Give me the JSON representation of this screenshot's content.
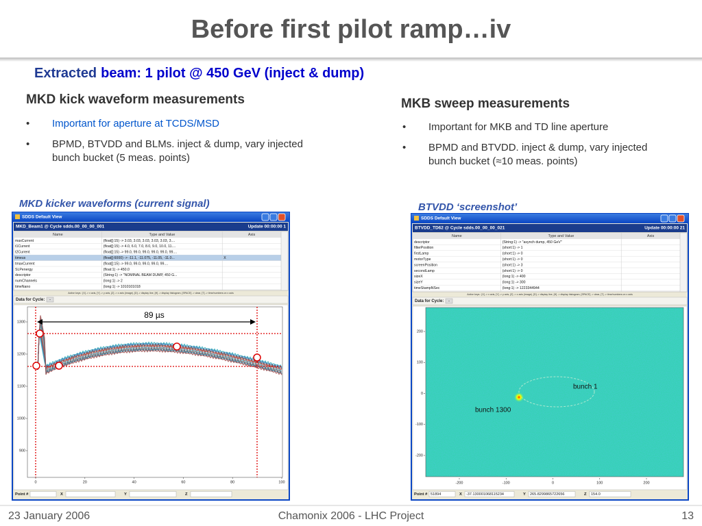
{
  "title": "Before first pilot ramp…iv",
  "subtitle": {
    "highlight": "Extracted",
    "rest": "beam: 1 pilot @ 450 GeV (inject & dump)"
  },
  "left": {
    "heading": "MKD kick waveform measurements",
    "bullets": [
      [
        "Important for aperture at TCDS/MSD"
      ],
      [
        "BPMD, BTVDD and BLMs. inject & dump, vary injected",
        "bunch bucket (5 meas. points)"
      ]
    ],
    "caption": "MKD kicker waveforms (current signal)"
  },
  "right": {
    "heading": "MKB sweep measurements",
    "bullets": [
      [
        "Important for MKB and TD line aperture"
      ],
      [
        "BPMD and BTVDD. inject & dump, vary injected",
        "bunch bucket (≈10 meas. points)"
      ]
    ],
    "caption": "BTVDD ‘screenshot’"
  },
  "windows": [
    {
      "app_title": "SDDS Default View",
      "device": "MKD_Beam1 @ Cycle sdds.00_00_00_001",
      "update": "Update 00:00:00 1",
      "columns": [
        "Name",
        "Type and Value",
        "Axis"
      ],
      "rows": [
        [
          "maxCurrent",
          "(float[]:15) -> 3.03, 3.03, 3.03, 3.03, 3.03, 3...."
        ],
        [
          "t1Current",
          "(float[]:15) -> 4.0, 6.0, 7.0, 8.0, 9.0, 10.0, 11...."
        ],
        [
          "t2Current",
          "(float[]:15) -> 99.0, 99.0, 99.0, 99.0, 99.0, 99...."
        ],
        [
          "timeus",
          "(float[]:6000) -> -11.1, -11.075, -11.05, -11.0...",
          "X"
        ],
        [
          "tmaxCurrent",
          "(float[]:15) -> 99.0, 99.0, 99.0, 99.0, 99...."
        ],
        [
          "SLPenergy",
          "(float:1) -> 450.0"
        ],
        [
          "descriptor",
          "(String:1) -> \"NOMINAL BEAM DUMP, 450 G..."
        ],
        [
          "numChannels",
          "(long:1) -> 2"
        ],
        [
          "timeNano",
          "(long:1) -> 1010101018"
        ]
      ],
      "active_keys": "Active keys : [X] -> x axis, [Y] -> y axis, [Z] -> z axis (image), [D] -> display line, [H] -> display histogram, [SPACE] -> clear, [T] -> time/numbers on x axis",
      "cycle_label": "Data for Cycle:",
      "cycle_value": "-",
      "yticks": [
        "1300",
        "1200",
        "1100",
        "1000",
        "900"
      ],
      "xticks": [
        "0",
        "20",
        "40",
        "60",
        "80",
        "100"
      ],
      "annotations": [
        "89 µs"
      ],
      "status": [
        {
          "label": "Point #"
        },
        {
          "label": "X"
        },
        {
          "label": "Y"
        },
        {
          "label": "Z"
        }
      ]
    },
    {
      "app_title": "SDDS Default View",
      "device": "BTVDD_TD62 @ Cycle sdds.00_00_00_021",
      "update": "Update 00:00:00 21",
      "columns": [
        "Name",
        "Type and Value",
        "Axis"
      ],
      "rows": [
        [
          "descriptor",
          "(String:1) -> \"asynch dump, 450 GeV\""
        ],
        [
          "filterPosition",
          "(short:1) -> 1"
        ],
        [
          "firstLamp",
          "(short:1) -> 0"
        ],
        [
          "motorType",
          "(short:1) -> 0"
        ],
        [
          "screenPosition",
          "(short:1) -> 3"
        ],
        [
          "secondLamp",
          "(short:1) -> 0"
        ],
        [
          "sizeX",
          "(long:1) -> 400"
        ],
        [
          "sizeY",
          "(long:1) -> 300"
        ],
        [
          "timeStampNSec",
          "(long:1) -> 1223344944"
        ]
      ],
      "active_keys": "Active keys : [X] -> x axis, [Y] -> y axis, [Z] -> z axis (image), [D] -> display line, [H] -> display histogram, [SPACE] -> clear, [T] -> time/numbers on x axis",
      "cycle_label": "Data for Cycle:",
      "cycle_value": "-",
      "yticks": [
        "200",
        "100",
        "0",
        "-100",
        "-200"
      ],
      "xticks": [
        "-200",
        "-100",
        "0",
        "100",
        "200"
      ],
      "annotations": [
        "bunch 1",
        "bunch 1300"
      ],
      "status": [
        {
          "label": "Point #",
          "value": "51894"
        },
        {
          "label": "X",
          "value": "-37.130001068115234"
        },
        {
          "label": "Y",
          "value": "265.8299865722656"
        },
        {
          "label": "Z",
          "value": "154.0"
        }
      ]
    }
  ],
  "footer": {
    "date": "23 January 2006",
    "event": "Chamonix 2006 - LHC Project",
    "page": "13"
  }
}
